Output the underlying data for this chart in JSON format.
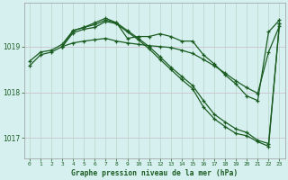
{
  "bg_color": "#d6f0f0",
  "grid_color_h": "#c8b8c8",
  "grid_color_v": "#b8d4c8",
  "line_color": "#1a5c20",
  "xlabel": "Graphe pression niveau de la mer (hPa)",
  "xlabel_color": "#1a5c20",
  "tick_color": "#1a5c20",
  "xlim": [
    -0.5,
    23.5
  ],
  "ylim": [
    1016.55,
    1019.95
  ],
  "yticks": [
    1017,
    1018,
    1019
  ],
  "xticks": [
    0,
    1,
    2,
    3,
    4,
    5,
    6,
    7,
    8,
    9,
    10,
    11,
    12,
    13,
    14,
    15,
    16,
    17,
    18,
    19,
    20,
    21,
    22,
    23
  ],
  "series1_x": [
    0,
    1,
    2,
    3,
    4,
    5,
    6,
    7,
    8,
    9,
    10,
    11,
    12,
    13,
    14,
    15,
    16,
    17,
    18,
    19,
    20,
    21,
    22,
    23
  ],
  "series1_y": [
    1018.68,
    1018.88,
    1018.92,
    1019.05,
    1019.35,
    1019.42,
    1019.52,
    1019.62,
    1019.52,
    1019.18,
    1019.22,
    1019.22,
    1019.28,
    1019.22,
    1019.12,
    1019.12,
    1018.82,
    1018.62,
    1018.38,
    1018.18,
    1017.92,
    1017.82,
    1019.32,
    1019.58
  ],
  "series2_x": [
    0,
    1,
    2,
    3,
    4,
    5,
    6,
    7,
    8,
    9,
    10,
    11,
    12,
    13,
    14,
    15,
    16,
    17,
    18,
    19,
    20,
    21,
    22,
    23
  ],
  "series2_y": [
    1018.58,
    1018.82,
    1018.88,
    1019.0,
    1019.08,
    1019.12,
    1019.15,
    1019.18,
    1019.12,
    1019.08,
    1019.05,
    1019.02,
    1019.0,
    1018.98,
    1018.92,
    1018.85,
    1018.72,
    1018.58,
    1018.42,
    1018.25,
    1018.1,
    1017.98,
    1018.88,
    1019.45
  ],
  "series3_x": [
    3,
    4,
    5,
    6,
    7,
    8,
    9,
    10,
    11,
    12,
    13,
    14,
    15,
    16,
    17,
    18,
    19,
    20,
    21,
    22,
    23
  ],
  "series3_y": [
    1019.0,
    1019.35,
    1019.42,
    1019.48,
    1019.58,
    1019.52,
    1019.35,
    1019.18,
    1019.0,
    1018.78,
    1018.55,
    1018.35,
    1018.15,
    1017.82,
    1017.52,
    1017.35,
    1017.2,
    1017.12,
    1016.95,
    1016.88,
    1019.5
  ],
  "series4_x": [
    3,
    4,
    5,
    6,
    7,
    8,
    9,
    10,
    11,
    12,
    13,
    14,
    15,
    16,
    17,
    18,
    19,
    20,
    21,
    22,
    23
  ],
  "series4_y": [
    1019.0,
    1019.3,
    1019.38,
    1019.42,
    1019.55,
    1019.5,
    1019.32,
    1019.15,
    1018.95,
    1018.72,
    1018.5,
    1018.28,
    1018.08,
    1017.68,
    1017.42,
    1017.25,
    1017.1,
    1017.05,
    1016.92,
    1016.82,
    1019.5
  ]
}
